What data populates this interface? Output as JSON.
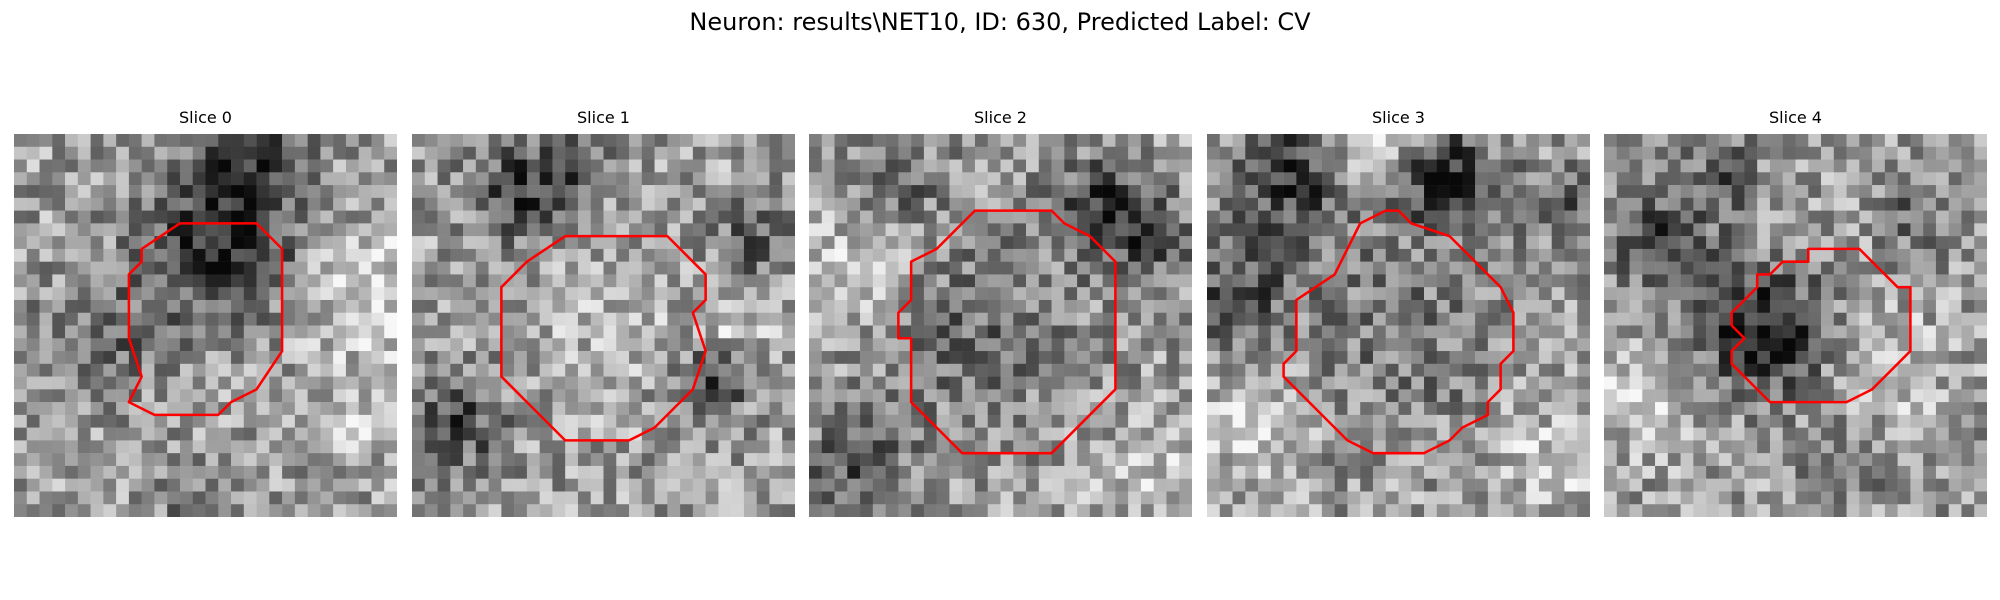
{
  "figure": {
    "title": "Neuron: results\\NET10, ID: 630, Predicted Label: CV"
  },
  "contour_color": "#ff0000",
  "grid_size": 30,
  "panels": [
    {
      "title": "Slice 0",
      "seed": 11,
      "dark_blobs": [
        [
          16,
          8,
          6,
          0.9
        ],
        [
          18,
          1,
          4,
          0.6
        ],
        [
          6,
          16,
          5,
          0.4
        ],
        [
          14,
          28,
          3,
          0.3
        ]
      ],
      "light_blobs": [
        [
          27,
          12,
          5,
          0.6
        ],
        [
          26,
          22,
          3,
          0.4
        ]
      ],
      "contour_points": [
        [
          13,
          7
        ],
        [
          19,
          7
        ],
        [
          21,
          9
        ],
        [
          21,
          17
        ],
        [
          19,
          20
        ],
        [
          17,
          21
        ],
        [
          16,
          22
        ],
        [
          11,
          22
        ],
        [
          9,
          21
        ],
        [
          10,
          19
        ],
        [
          9,
          16
        ],
        [
          9,
          11
        ],
        [
          10,
          10
        ],
        [
          10,
          9
        ]
      ]
    },
    {
      "title": "Slice 1",
      "seed": 23,
      "dark_blobs": [
        [
          8,
          4,
          4,
          0.7
        ],
        [
          3,
          22,
          4,
          0.6
        ],
        [
          23,
          19,
          3,
          0.6
        ],
        [
          26,
          8,
          3,
          0.5
        ],
        [
          13,
          2,
          3,
          0.4
        ]
      ],
      "light_blobs": [
        [
          14,
          14,
          7,
          0.2
        ],
        [
          25,
          14,
          3,
          0.4
        ]
      ],
      "contour_points": [
        [
          9,
          10
        ],
        [
          12,
          8
        ],
        [
          17,
          8
        ],
        [
          20,
          8
        ],
        [
          21,
          9
        ],
        [
          23,
          11
        ],
        [
          23,
          13
        ],
        [
          22,
          14
        ],
        [
          23,
          17
        ],
        [
          22,
          20
        ],
        [
          21,
          21
        ],
        [
          20,
          22
        ],
        [
          19,
          23
        ],
        [
          17,
          24
        ],
        [
          12,
          24
        ],
        [
          9,
          21
        ],
        [
          8,
          20
        ],
        [
          7,
          19
        ],
        [
          7,
          17
        ],
        [
          7,
          12
        ]
      ]
    },
    {
      "title": "Slice 2",
      "seed": 37,
      "dark_blobs": [
        [
          23,
          5,
          4,
          0.7
        ],
        [
          13,
          15,
          8,
          0.35
        ],
        [
          3,
          25,
          4,
          0.5
        ],
        [
          27,
          8,
          3,
          0.5
        ],
        [
          7,
          3,
          3,
          0.4
        ]
      ],
      "light_blobs": [
        [
          3,
          10,
          4,
          0.4
        ],
        [
          26,
          26,
          4,
          0.3
        ]
      ],
      "contour_points": [
        [
          13,
          6
        ],
        [
          19,
          6
        ],
        [
          20,
          7
        ],
        [
          22,
          8
        ],
        [
          24,
          10
        ],
        [
          24,
          20
        ],
        [
          19,
          25
        ],
        [
          12,
          25
        ],
        [
          8,
          21
        ],
        [
          8,
          16
        ],
        [
          7,
          16
        ],
        [
          7,
          14
        ],
        [
          8,
          13
        ],
        [
          8,
          10
        ],
        [
          10,
          9
        ],
        [
          11,
          8
        ]
      ]
    },
    {
      "title": "Slice 3",
      "seed": 41,
      "dark_blobs": [
        [
          18,
          3,
          4,
          0.8
        ],
        [
          6,
          3,
          5,
          0.7
        ],
        [
          2,
          12,
          4,
          0.6
        ],
        [
          27,
          5,
          3,
          0.5
        ],
        [
          15,
          15,
          8,
          0.3
        ]
      ],
      "light_blobs": [
        [
          13,
          1,
          3,
          0.6
        ],
        [
          3,
          22,
          4,
          0.4
        ],
        [
          26,
          25,
          4,
          0.4
        ]
      ],
      "contour_points": [
        [
          12,
          7
        ],
        [
          14,
          6
        ],
        [
          15,
          6
        ],
        [
          16,
          7
        ],
        [
          19,
          8
        ],
        [
          20,
          9
        ],
        [
          22,
          11
        ],
        [
          23,
          12
        ],
        [
          24,
          14
        ],
        [
          24,
          17
        ],
        [
          23,
          18
        ],
        [
          23,
          20
        ],
        [
          22,
          21
        ],
        [
          22,
          22
        ],
        [
          20,
          23
        ],
        [
          19,
          24
        ],
        [
          17,
          25
        ],
        [
          13,
          25
        ],
        [
          11,
          24
        ],
        [
          8,
          21
        ],
        [
          6,
          19
        ],
        [
          6,
          18
        ],
        [
          7,
          17
        ],
        [
          7,
          13
        ],
        [
          10,
          11
        ]
      ]
    },
    {
      "title": "Slice 4",
      "seed": 53,
      "dark_blobs": [
        [
          12,
          15,
          5,
          0.9
        ],
        [
          4,
          8,
          4,
          0.6
        ],
        [
          9,
          3,
          3,
          0.5
        ],
        [
          18,
          26,
          3,
          0.4
        ],
        [
          24,
          6,
          3,
          0.4
        ]
      ],
      "light_blobs": [
        [
          22,
          18,
          4,
          0.4
        ],
        [
          2,
          20,
          4,
          0.4
        ]
      ],
      "contour_points": [
        [
          16,
          9
        ],
        [
          20,
          9
        ],
        [
          21,
          10
        ],
        [
          22,
          11
        ],
        [
          23,
          12
        ],
        [
          24,
          12
        ],
        [
          24,
          17
        ],
        [
          21,
          20
        ],
        [
          19,
          21
        ],
        [
          15,
          21
        ],
        [
          13,
          21
        ],
        [
          10,
          18
        ],
        [
          10,
          17
        ],
        [
          11,
          16
        ],
        [
          10,
          15
        ],
        [
          10,
          14
        ],
        [
          11,
          13
        ],
        [
          12,
          12
        ],
        [
          12,
          11
        ],
        [
          13,
          11
        ],
        [
          14,
          10
        ],
        [
          16,
          10
        ]
      ]
    }
  ]
}
